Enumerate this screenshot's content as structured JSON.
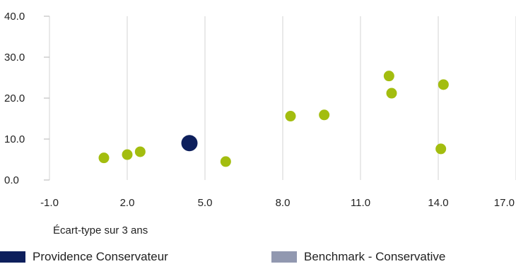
{
  "chart_data": {
    "type": "scatter",
    "xlabel": "Écart-type sur 3 ans",
    "ylabel": "",
    "xlim": [
      -1.0,
      17.0
    ],
    "ylim": [
      0.0,
      40.0
    ],
    "x_ticks": [
      "-1.0",
      "2.0",
      "5.0",
      "8.0",
      "11.0",
      "14.0",
      "17.0"
    ],
    "y_ticks": [
      "0.0",
      "10.0",
      "20.0",
      "30.0",
      "40.0"
    ],
    "grid": "vertical",
    "series": [
      {
        "name": "Providence Conservateur",
        "color": "#0d1f5c",
        "points": [
          {
            "x": 4.4,
            "y": 9.0
          }
        ]
      },
      {
        "name": "Benchmark - Conservative",
        "color": "#9198b0",
        "points": []
      },
      {
        "name": "",
        "color": "#a3bd0f",
        "points": [
          {
            "x": 1.1,
            "y": 5.4
          },
          {
            "x": 2.0,
            "y": 6.2
          },
          {
            "x": 2.5,
            "y": 6.9
          },
          {
            "x": 5.8,
            "y": 4.5
          },
          {
            "x": 8.3,
            "y": 15.6
          },
          {
            "x": 9.6,
            "y": 15.9
          },
          {
            "x": 12.1,
            "y": 25.4
          },
          {
            "x": 12.2,
            "y": 21.2
          },
          {
            "x": 14.1,
            "y": 7.6
          },
          {
            "x": 14.2,
            "y": 23.3
          }
        ]
      }
    ],
    "legend_position": "bottom"
  }
}
